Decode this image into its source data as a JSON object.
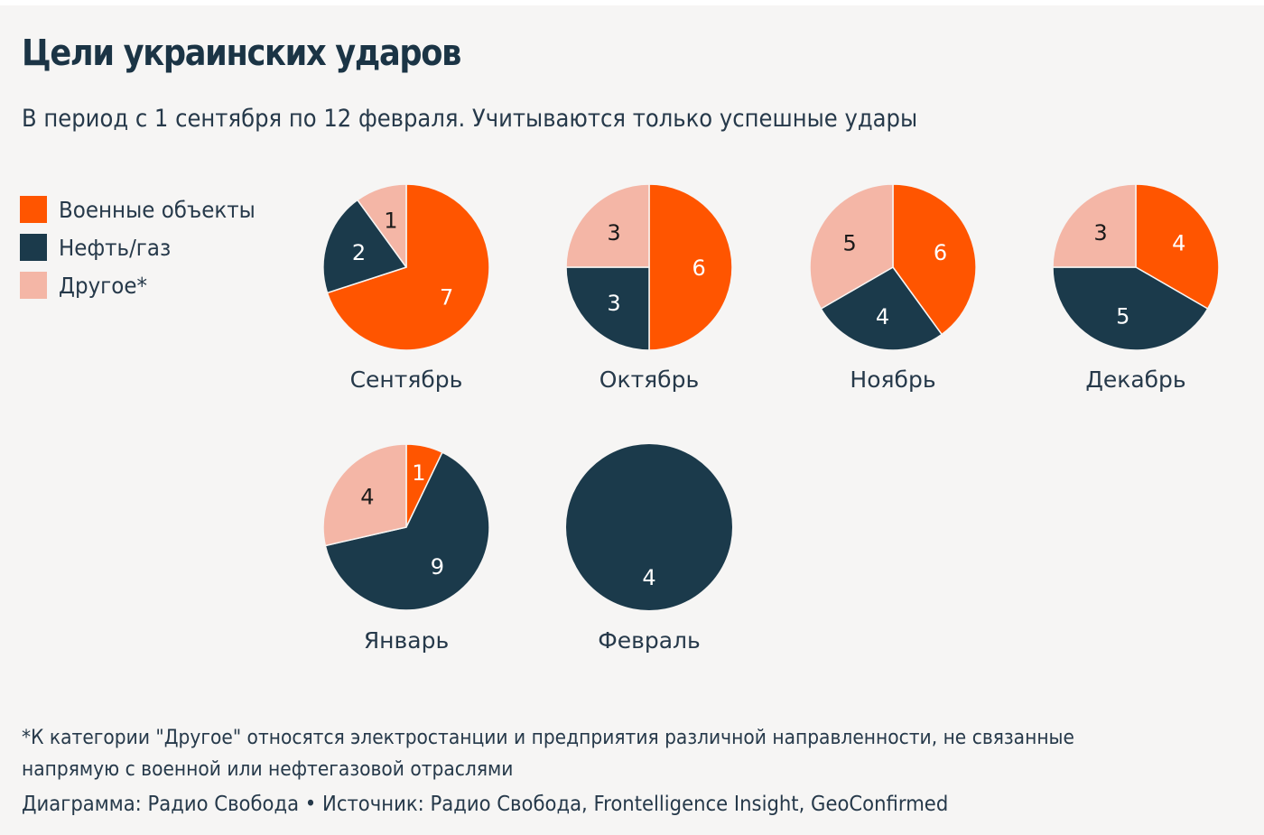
{
  "header": {
    "title": "Цели украинских ударов",
    "subtitle": "В период с 1 сентября по 12 февраля. Учитываются только успешные удары"
  },
  "colors": {
    "military": "#ff5500",
    "oil_gas": "#1b3a4b",
    "other": "#f4b6a6",
    "label_light": "#ffffff",
    "label_dark": "#1a1a1a",
    "separator": "#f6f5f4"
  },
  "legend": [
    {
      "key": "military",
      "label": "Военные объекты"
    },
    {
      "key": "oil_gas",
      "label": "Нефть/газ"
    },
    {
      "key": "other",
      "label": "Другое*"
    }
  ],
  "chart_data": {
    "type": "pie",
    "title": "Цели украинских ударов",
    "subtitle": "В период с 1 сентября по 12 февраля. Учитываются только успешные удары",
    "series_order": [
      "Военные объекты",
      "Нефть/газ",
      "Другое*"
    ],
    "legend_position": "top-left",
    "start_angle": "12 o'clock, clockwise",
    "pies": [
      {
        "month": "Сентябрь",
        "values": {
          "military": 7,
          "oil_gas": 2,
          "other": 1
        }
      },
      {
        "month": "Октябрь",
        "values": {
          "military": 6,
          "oil_gas": 3,
          "other": 3
        }
      },
      {
        "month": "Ноябрь",
        "values": {
          "military": 6,
          "oil_gas": 4,
          "other": 5
        }
      },
      {
        "month": "Декабрь",
        "values": {
          "military": 4,
          "oil_gas": 5,
          "other": 3
        }
      },
      {
        "month": "Январь",
        "values": {
          "military": 1,
          "oil_gas": 9,
          "other": 4
        }
      },
      {
        "month": "Февраль",
        "values": {
          "military": 0,
          "oil_gas": 4,
          "other": 0
        }
      }
    ]
  },
  "footer": {
    "footnote_line1": "*К категории \"Другое\" относятся электростанции и предприятия различной направленности, не связанные",
    "footnote_line2": "напрямую с военной или нефтегазовой отраслями",
    "credit": "Диаграмма: Радио Свобода • Источник: Радио Свобода, Frontelligence Insight, GeoConfirmed"
  }
}
